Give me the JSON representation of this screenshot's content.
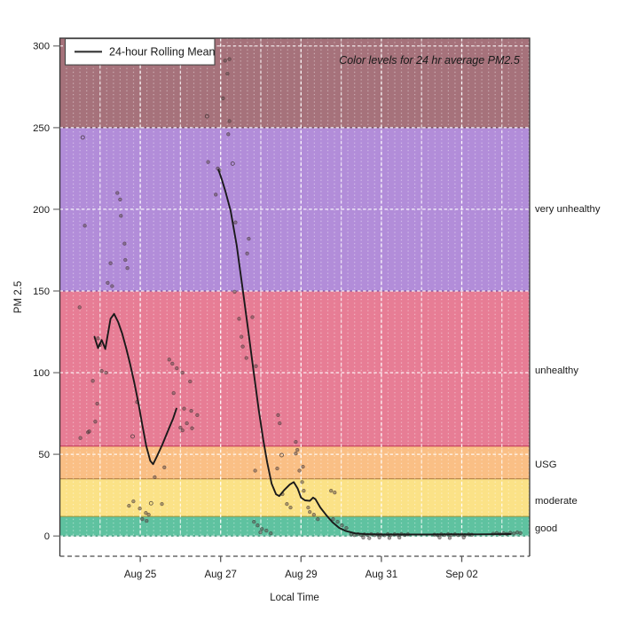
{
  "annotation": "Color levels for 24 hr average PM2.5",
  "legend": {
    "label": "24-hour Rolling Mean",
    "line_color": "#333333"
  },
  "axes": {
    "y_label": "PM 2.5",
    "x_label": "Local Time"
  },
  "colors": {
    "line": "#1a1a1a",
    "scatter_fill": "#5a4a4a",
    "scatter_stroke": "#3a2f2f",
    "grid_white": "#ffffff",
    "border": "#333333",
    "tick": "#777777"
  },
  "bands": [
    {
      "name": "good",
      "from": 0,
      "to": 12,
      "fill": "#5fc2a0",
      "edge": "#2e8a6c",
      "label": "good",
      "label_v": 5
    },
    {
      "name": "moderate",
      "from": 12,
      "to": 35,
      "fill": "#fbe287",
      "edge": "#a59433",
      "label": "moderate",
      "label_v": 21.8
    },
    {
      "name": "usg",
      "from": 35,
      "to": 55,
      "fill": "#fabf85",
      "edge": "#a8763c",
      "label": "USG",
      "label_v": 44.1
    },
    {
      "name": "unhealthy",
      "from": 55,
      "to": 150,
      "fill": "#e77d95",
      "edge": "#ba2f55",
      "label": "unhealthy",
      "label_v": 101.7
    },
    {
      "name": "very-unhealthy",
      "from": 150,
      "to": 250,
      "fill": "#b28dd9",
      "edge": "#6f4da0",
      "label": "very unhealthy",
      "label_v": 200.5
    },
    {
      "name": "hazardous",
      "from": 250,
      "to": "top",
      "fill": "#a6727b",
      "edge": "#6d454e",
      "label": "",
      "label_v": null
    }
  ],
  "chart_data": {
    "type": "line",
    "title": "Color levels for 24 hr average PM2.5",
    "xlabel": "Local Time",
    "ylabel": "PM 2.5",
    "x_unit": "days since Aug 23 00:00 (local)",
    "xlim_days": [
      0,
      11.69
    ],
    "ylim": [
      -12.4,
      304.8
    ],
    "y_ticks": [
      0,
      50,
      100,
      150,
      200,
      250,
      300
    ],
    "x_ticks": [
      {
        "t": 2,
        "label": "Aug 25"
      },
      {
        "t": 4,
        "label": "Aug 27"
      },
      {
        "t": 6,
        "label": "Aug 29"
      },
      {
        "t": 8,
        "label": "Aug 31"
      },
      {
        "t": 10,
        "label": "Sep 02"
      }
    ],
    "x_day_gridlines": [
      1,
      2,
      3,
      4,
      5,
      6,
      7,
      8,
      9,
      10,
      11
    ],
    "minor_gridline_step_days": 0.16667,
    "grid": true,
    "legend_position": "top-left",
    "series": [
      {
        "name": "24-hour Rolling Mean",
        "type": "line",
        "color": "#1a1a1a",
        "segments": [
          [
            [
              0.86,
              122
            ],
            [
              0.95,
              115
            ],
            [
              1.04,
              120
            ],
            [
              1.13,
              114.5
            ],
            [
              1.26,
              133
            ],
            [
              1.35,
              136
            ],
            [
              1.45,
              131
            ],
            [
              1.55,
              124
            ],
            [
              1.65,
              115
            ],
            [
              1.75,
              105
            ],
            [
              1.85,
              94
            ],
            [
              1.95,
              82
            ],
            [
              2.05,
              68
            ],
            [
              2.15,
              55
            ],
            [
              2.25,
              46
            ],
            [
              2.32,
              44
            ],
            [
              2.42,
              49
            ],
            [
              2.55,
              56
            ],
            [
              2.7,
              65
            ],
            [
              2.82,
              72
            ],
            [
              2.9,
              78
            ]
          ],
          [
            [
              3.95,
              224
            ],
            [
              4.02,
              219
            ],
            [
              4.12,
              211
            ],
            [
              4.25,
              199
            ],
            [
              4.4,
              178
            ],
            [
              4.55,
              151
            ],
            [
              4.68,
              127
            ],
            [
              4.82,
              101
            ],
            [
              4.95,
              77
            ],
            [
              5.06,
              59
            ],
            [
              5.16,
              45
            ],
            [
              5.27,
              32
            ],
            [
              5.38,
              25.5
            ],
            [
              5.46,
              24.5
            ],
            [
              5.58,
              28
            ],
            [
              5.72,
              31.5
            ],
            [
              5.82,
              33
            ],
            [
              5.92,
              29
            ],
            [
              6.0,
              23.5
            ],
            [
              6.1,
              21.8
            ],
            [
              6.22,
              21.5
            ],
            [
              6.3,
              23.5
            ],
            [
              6.36,
              22.5
            ],
            [
              6.48,
              17.5
            ],
            [
              6.62,
              13
            ],
            [
              6.78,
              8.5
            ],
            [
              6.95,
              5
            ],
            [
              7.12,
              3
            ],
            [
              7.35,
              1.6
            ],
            [
              7.6,
              1.1
            ],
            [
              8.0,
              0.9
            ],
            [
              8.6,
              0.9
            ],
            [
              9.2,
              0.9
            ],
            [
              9.8,
              1.0
            ],
            [
              10.4,
              1.0
            ],
            [
              11.0,
              1.1
            ],
            [
              11.22,
              1.2
            ]
          ]
        ]
      },
      {
        "name": "hourly-pm25-points",
        "type": "scatter",
        "points": [
          [
            0.49,
            140
          ],
          [
            0.62,
            190
          ],
          [
            0.51,
            60
          ],
          [
            0.7,
            63.5
          ],
          [
            0.73,
            64
          ],
          [
            0.82,
            95
          ],
          [
            0.88,
            70
          ],
          [
            0.93,
            81
          ],
          [
            1.04,
            101
          ],
          [
            1.15,
            100
          ],
          [
            0.95,
            121
          ],
          [
            1.0,
            117
          ],
          [
            1.19,
            155
          ],
          [
            1.26,
            167
          ],
          [
            1.3,
            153
          ],
          [
            1.43,
            210
          ],
          [
            1.5,
            206
          ],
          [
            1.52,
            196
          ],
          [
            1.61,
            179
          ],
          [
            1.63,
            169
          ],
          [
            1.68,
            164
          ],
          [
            1.72,
            18.5
          ],
          [
            1.83,
            21.2
          ],
          [
            1.99,
            16.8
          ],
          [
            2.05,
            10.3
          ],
          [
            2.14,
            14.1
          ],
          [
            2.16,
            9.2
          ],
          [
            2.21,
            13
          ],
          [
            2.54,
            19.6
          ],
          [
            2.36,
            36
          ],
          [
            2.6,
            42
          ],
          [
            1.92,
            82
          ],
          [
            2.72,
            108
          ],
          [
            2.8,
            105.5
          ],
          [
            2.91,
            102.7
          ],
          [
            3.05,
            100
          ],
          [
            3.24,
            94.6
          ],
          [
            3.09,
            78
          ],
          [
            3.16,
            69
          ],
          [
            3.27,
            76.6
          ],
          [
            3.29,
            66
          ],
          [
            3.42,
            74
          ],
          [
            3.0,
            66.3
          ],
          [
            3.05,
            64.7
          ],
          [
            2.83,
            87.5
          ],
          [
            3.69,
            229
          ],
          [
            3.88,
            209
          ],
          [
            3.93,
            225
          ],
          [
            3.97,
            224
          ],
          [
            4.06,
            268
          ],
          [
            4.11,
            291
          ],
          [
            4.17,
            283
          ],
          [
            4.22,
            292
          ],
          [
            4.19,
            246
          ],
          [
            4.22,
            254
          ],
          [
            4.35,
            149.5
          ],
          [
            4.37,
            192
          ],
          [
            4.46,
            133
          ],
          [
            4.52,
            122
          ],
          [
            4.55,
            116
          ],
          [
            4.64,
            109
          ],
          [
            4.66,
            173
          ],
          [
            4.7,
            182
          ],
          [
            4.79,
            134
          ],
          [
            4.88,
            104
          ],
          [
            4.83,
            8.7
          ],
          [
            4.92,
            6.5
          ],
          [
            4.99,
            2.2
          ],
          [
            5.03,
            4.3
          ],
          [
            5.14,
            3.3
          ],
          [
            5.25,
            1.6
          ],
          [
            4.86,
            40
          ],
          [
            5.41,
            41.3
          ],
          [
            5.43,
            74
          ],
          [
            5.47,
            69
          ],
          [
            5.54,
            25.6
          ],
          [
            5.65,
            19.6
          ],
          [
            5.74,
            17.4
          ],
          [
            5.87,
            57.6
          ],
          [
            5.87,
            50.5
          ],
          [
            5.91,
            52.7
          ],
          [
            5.96,
            40
          ],
          [
            6.03,
            33
          ],
          [
            6.05,
            42.4
          ],
          [
            6.07,
            27.7
          ],
          [
            6.18,
            17.4
          ],
          [
            6.22,
            14.7
          ],
          [
            6.32,
            13
          ],
          [
            6.42,
            10.3
          ],
          [
            6.75,
            27.7
          ],
          [
            6.84,
            26.6
          ],
          [
            6.8,
            10.3
          ],
          [
            6.91,
            8.7
          ],
          [
            7.02,
            6.5
          ],
          [
            7.13,
            4.9
          ],
          [
            7.25,
            1
          ],
          [
            7.33,
            0.5
          ],
          [
            7.42,
            1.1
          ],
          [
            7.5,
            0.6
          ],
          [
            7.58,
            1
          ],
          [
            7.66,
            0.7
          ],
          [
            7.75,
            1.2
          ],
          [
            7.83,
            0.5
          ],
          [
            7.91,
            1
          ],
          [
            7.99,
            0.8
          ],
          [
            8.08,
            0.4
          ],
          [
            8.16,
            1.1
          ],
          [
            8.24,
            0.6
          ],
          [
            8.33,
            1
          ],
          [
            8.41,
            0.7
          ],
          [
            8.5,
            1.2
          ],
          [
            8.58,
            0.6
          ],
          [
            8.66,
            1
          ],
          [
            7.55,
            -1
          ],
          [
            7.7,
            -1.3
          ],
          [
            7.95,
            -0.9
          ],
          [
            8.2,
            -1.2
          ],
          [
            8.45,
            -1
          ],
          [
            9.32,
            0.8
          ],
          [
            9.4,
            0.5
          ],
          [
            9.49,
            1
          ],
          [
            9.57,
            0.6
          ],
          [
            9.66,
            1.1
          ],
          [
            9.74,
            0.7
          ],
          [
            9.83,
            1
          ],
          [
            9.91,
            0.5
          ],
          [
            10.0,
            0.9
          ],
          [
            10.08,
            0.6
          ],
          [
            10.17,
            1
          ],
          [
            10.25,
            0.8
          ],
          [
            9.45,
            -1
          ],
          [
            9.7,
            -1.2
          ],
          [
            10.05,
            -0.9
          ],
          [
            10.78,
            1.4
          ],
          [
            10.87,
            1.8
          ],
          [
            10.95,
            1.2
          ],
          [
            11.04,
            1.6
          ],
          [
            11.12,
            1.3
          ],
          [
            11.21,
            1.9
          ],
          [
            11.3,
            1.5
          ],
          [
            11.38,
            2.2
          ],
          [
            11.46,
            1.8
          ]
        ],
        "open_points": [
          [
            0.57,
            244
          ],
          [
            1.81,
            61
          ],
          [
            2.27,
            20
          ],
          [
            3.66,
            257
          ],
          [
            4.3,
            228
          ],
          [
            5.52,
            49.5
          ]
        ]
      }
    ]
  }
}
